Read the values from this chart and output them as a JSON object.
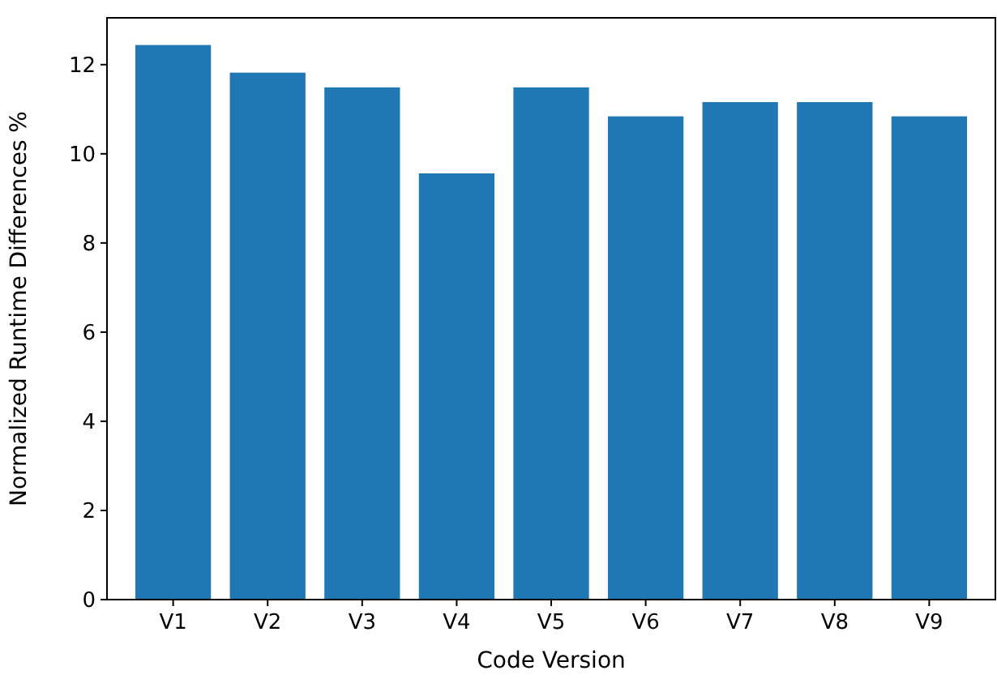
{
  "chart_data": {
    "type": "bar",
    "xlabel": "Code Version",
    "ylabel": "Normalized Runtime Differences %",
    "categories": [
      "V1",
      "V2",
      "V3",
      "V4",
      "V5",
      "V6",
      "V7",
      "V8",
      "V9"
    ],
    "values": [
      12.44,
      11.82,
      11.49,
      9.56,
      11.49,
      10.84,
      11.16,
      11.16,
      10.84
    ],
    "color": "#1f77b4",
    "ylim": [
      0,
      13.05
    ],
    "yticks": [
      0,
      2,
      4,
      6,
      8,
      10,
      12
    ],
    "grid": false
  }
}
